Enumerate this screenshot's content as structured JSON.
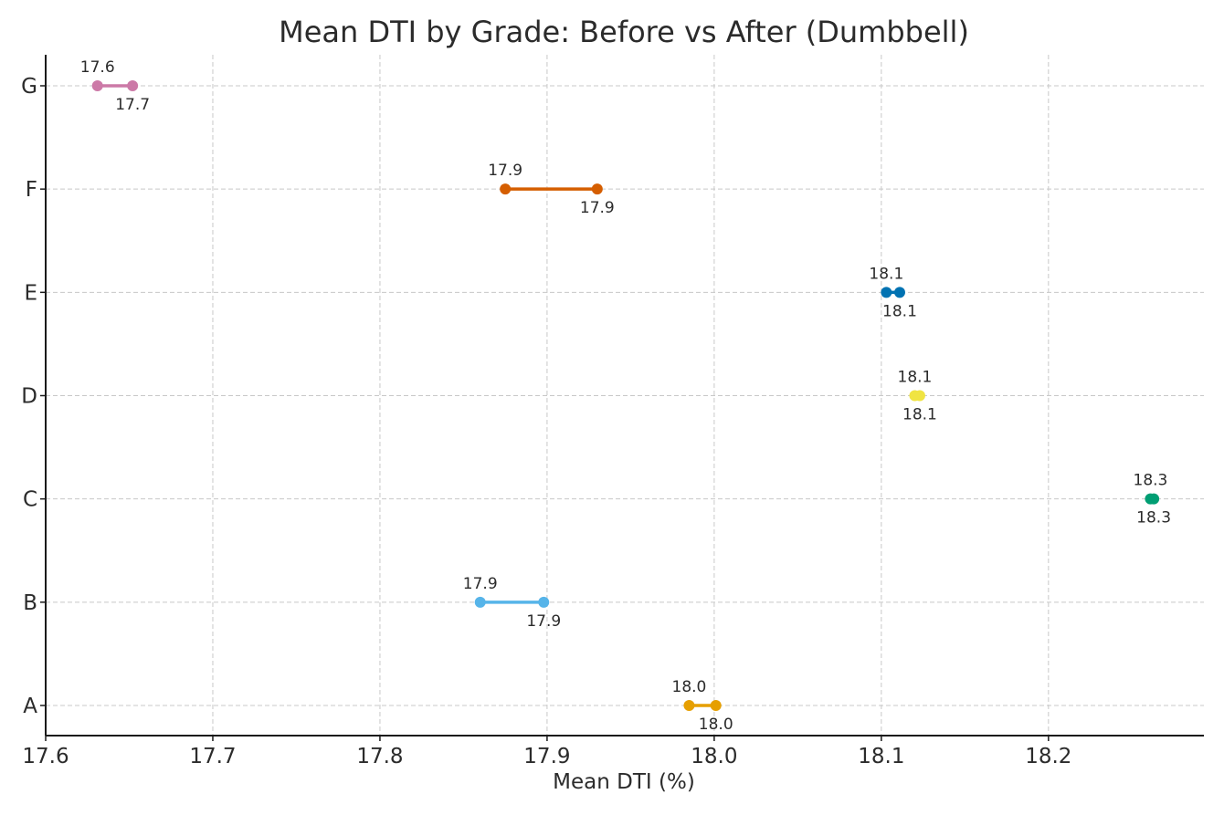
{
  "chart_data": {
    "type": "dumbbell",
    "title": "Mean DTI by Grade: Before vs After (Dumbbell)",
    "xlabel": "Mean DTI (%)",
    "ylabel": "",
    "xlim": [
      17.6,
      18.293
    ],
    "xticks": [
      17.6,
      17.7,
      17.8,
      17.9,
      18.0,
      18.1,
      18.2
    ],
    "xtick_labels": [
      "17.6",
      "17.7",
      "17.8",
      "17.9",
      "18.0",
      "18.1",
      "18.2"
    ],
    "categories": [
      "A",
      "B",
      "C",
      "D",
      "E",
      "F",
      "G"
    ],
    "grid": true,
    "points": [
      {
        "grade": "A",
        "start": 17.985,
        "end": 18.001,
        "start_label": "18.0",
        "end_label": "18.0",
        "color": "#E69F00"
      },
      {
        "grade": "B",
        "start": 17.86,
        "end": 17.898,
        "start_label": "17.9",
        "end_label": "17.9",
        "color": "#56B4E9"
      },
      {
        "grade": "C",
        "start": 18.261,
        "end": 18.263,
        "start_label": "18.3",
        "end_label": "18.3",
        "color": "#009E73"
      },
      {
        "grade": "D",
        "start": 18.12,
        "end": 18.123,
        "start_label": "18.1",
        "end_label": "18.1",
        "color": "#F0E442"
      },
      {
        "grade": "E",
        "start": 18.103,
        "end": 18.111,
        "start_label": "18.1",
        "end_label": "18.1",
        "color": "#0072B2"
      },
      {
        "grade": "F",
        "start": 17.875,
        "end": 17.93,
        "start_label": "17.9",
        "end_label": "17.9",
        "color": "#D55E00"
      },
      {
        "grade": "G",
        "start": 17.631,
        "end": 17.652,
        "start_label": "17.6",
        "end_label": "17.7",
        "color": "#CC79A7"
      }
    ]
  }
}
